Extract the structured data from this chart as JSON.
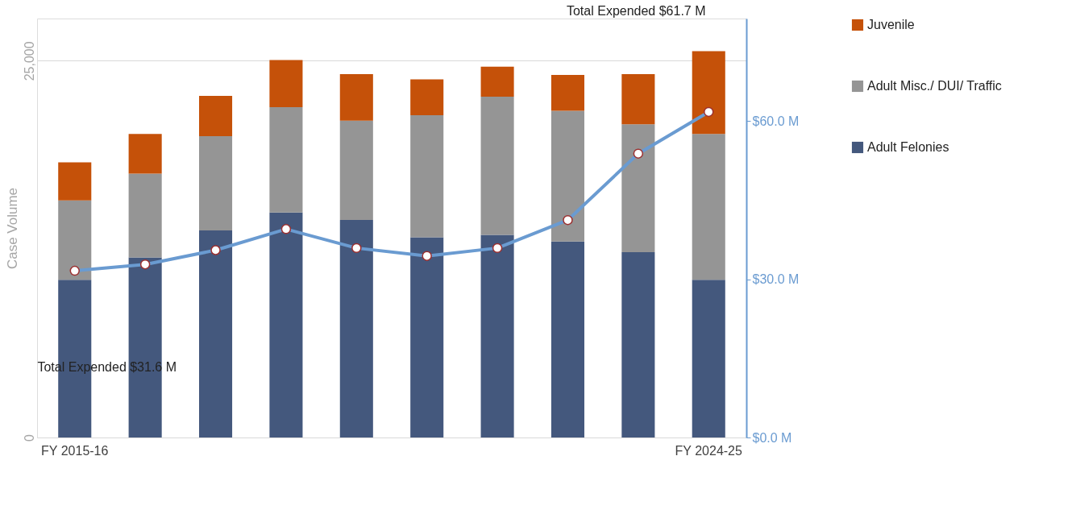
{
  "chart_data": {
    "type": "bar",
    "stacked": true,
    "ylabel": "Case Volume",
    "categories": [
      "FY 2015-16",
      null,
      null,
      null,
      null,
      null,
      null,
      null,
      null,
      "FY 2024-25"
    ],
    "series": [
      {
        "name": "Adult Felonies",
        "color": "#44587d",
        "values": [
          10470,
          11950,
          13740,
          14930,
          14430,
          13290,
          13440,
          13000,
          12300,
          10470
        ]
      },
      {
        "name": "Adult Misc./ DUI/ Traffic",
        "color": "#959595",
        "values": [
          5260,
          5560,
          6250,
          6990,
          6600,
          8090,
          9180,
          8680,
          8480,
          9670
        ]
      },
      {
        "name": "Juvenile",
        "color": "#c55109",
        "values": [
          2530,
          2630,
          2680,
          3130,
          3080,
          2380,
          1980,
          2380,
          3330,
          5500
        ]
      },
      {
        "type": "line",
        "axis": "y2",
        "color": "#6a9bd1",
        "marker": "circle",
        "values": [
          31.6,
          32.8,
          35.5,
          39.5,
          35.9,
          34.4,
          35.9,
          41.2,
          53.8,
          61.7
        ]
      }
    ],
    "ylim": [
      0,
      27800
    ],
    "yticks": [
      0,
      {
        "value": 25000,
        "label": "25,000"
      }
    ],
    "y2lim": [
      0,
      79.4
    ],
    "y2ticks": [
      {
        "value": 0,
        "label": "$0.0  M"
      },
      {
        "value": 30,
        "label": "$30.0  M"
      },
      {
        "value": 60,
        "label": "$60.0  M"
      }
    ],
    "grid": "y",
    "legend": "right",
    "annotations": [
      "Total Expended $31.6  M",
      "Total Expended $61.7  M"
    ]
  }
}
